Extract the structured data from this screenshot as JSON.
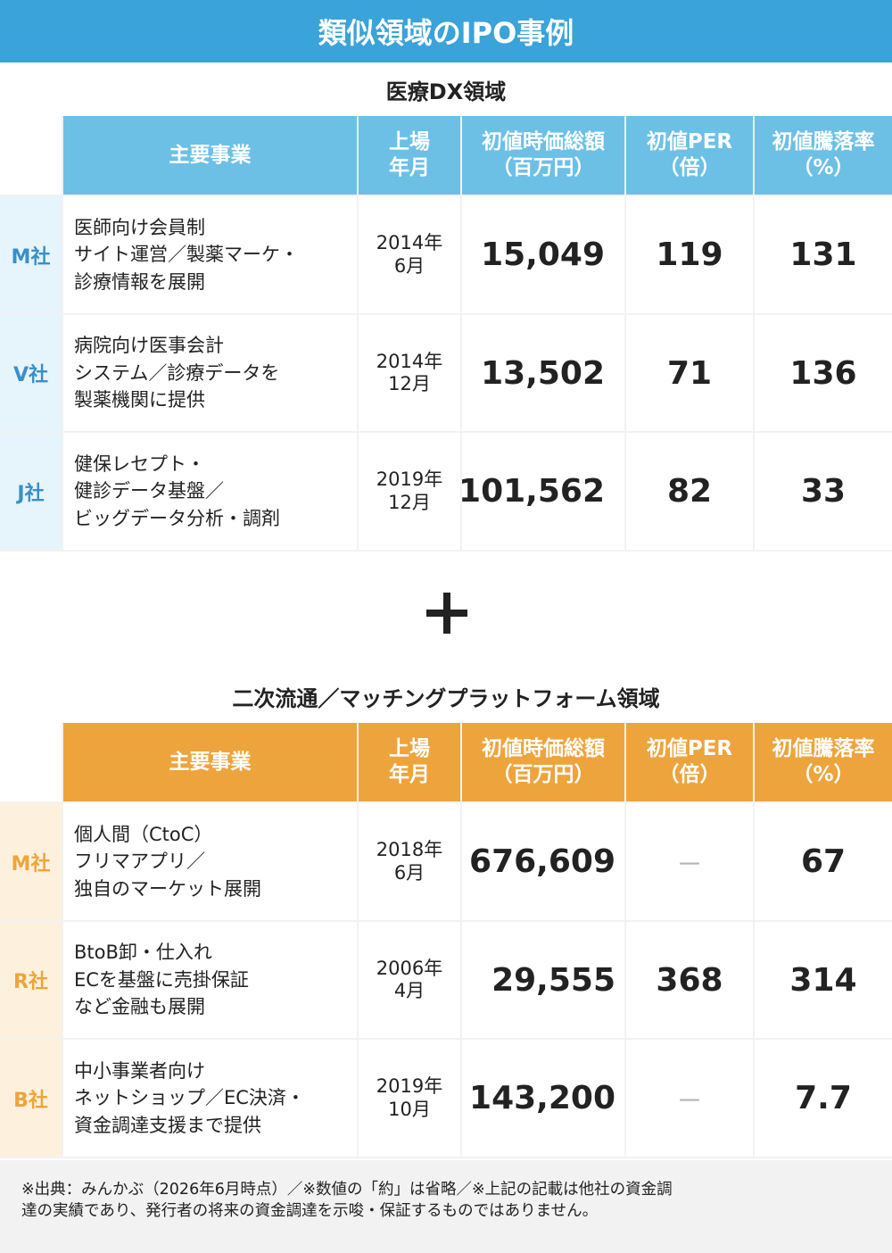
{
  "title": "類似領域のIPO事例",
  "headers": {
    "business": "主要事業",
    "listing_1": "上場",
    "listing_2": "年月",
    "mcap_1": "初値時価総額",
    "mcap_2": "（百万円）",
    "per_1": "初値PER",
    "per_2": "（倍）",
    "rise_1": "初値騰落率",
    "rise_2": "（%）"
  },
  "section1": {
    "title": "医療DX領域",
    "rows": [
      {
        "company": "M社",
        "business": [
          "医師向け会員制",
          "サイト運営／製薬マーケ・",
          "診療情報を展開"
        ],
        "date": [
          "2014年",
          "6月"
        ],
        "mcap": "15,049",
        "per": "119",
        "rise": "131"
      },
      {
        "company": "V社",
        "business": [
          "病院向け医事会計",
          "システム／診療データを",
          "製薬機関に提供"
        ],
        "date": [
          "2014年",
          "12月"
        ],
        "mcap": "13,502",
        "per": "71",
        "rise": "136"
      },
      {
        "company": "J社",
        "business": [
          "健保レセプト・",
          "健診データ基盤／",
          "ビッグデータ分析・調剤"
        ],
        "date": [
          "2019年",
          "12月"
        ],
        "mcap": "101,562",
        "per": "82",
        "rise": "33"
      }
    ]
  },
  "section2": {
    "title": "二次流通／マッチングプラットフォーム領域",
    "rows": [
      {
        "company": "M社",
        "business": [
          "個人間（CtoC）",
          "フリマアプリ／",
          "独自のマーケット展開"
        ],
        "date": [
          "2018年",
          "6月"
        ],
        "mcap": "676,609",
        "per": "－",
        "rise": "67"
      },
      {
        "company": "R社",
        "business": [
          "BtoB卸・仕入れ",
          "ECを基盤に売掛保証",
          "など金融も展開"
        ],
        "date": [
          "2006年",
          "4月"
        ],
        "mcap": "29,555",
        "per": "368",
        "rise": "314"
      },
      {
        "company": "B社",
        "business": [
          "中小事業者向け",
          "ネットショップ／EC決済・",
          "資金調達支援まで提供"
        ],
        "date": [
          "2019年",
          "10月"
        ],
        "mcap": "143,200",
        "per": "－",
        "rise": "7.7"
      }
    ]
  },
  "footer": {
    "line1": "※出典：みんかぶ（2026年6月時点）／※数値の「約」は省略／※上記の記載は他社の資金調",
    "line2": "達の実績であり、発行者の将来の資金調達を示唆・保証するものではありません。"
  },
  "colors": {
    "banner": "#3aa3d9",
    "section1_header": "#6cc0e6",
    "section2_header": "#eea43c"
  },
  "icons": {
    "separator": "plus-icon"
  }
}
